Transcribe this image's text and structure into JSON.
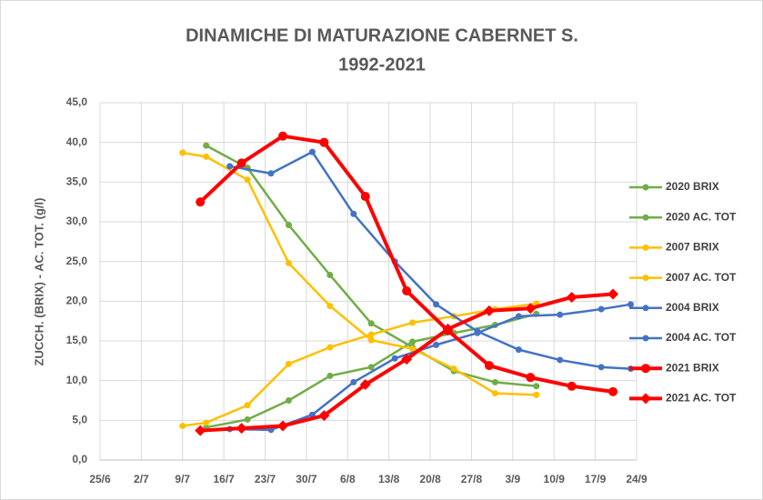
{
  "chart_data": {
    "type": "line",
    "title": "DINAMICHE DI MATURAZIONE CABERNET S.",
    "subtitle": "1992-2021",
    "y_label": "ZUCCH. (BRIX) - AC. TOT. (g/l)",
    "xlim": [
      176,
      267
    ],
    "xticks": [
      {
        "value": 176,
        "label": "25/6"
      },
      {
        "value": 183,
        "label": "2/7"
      },
      {
        "value": 190,
        "label": "9/7"
      },
      {
        "value": 197,
        "label": "16/7"
      },
      {
        "value": 204,
        "label": "23/7"
      },
      {
        "value": 211,
        "label": "30/7"
      },
      {
        "value": 218,
        "label": "6/8"
      },
      {
        "value": 225,
        "label": "13/8"
      },
      {
        "value": 232,
        "label": "20/8"
      },
      {
        "value": 239,
        "label": "27/8"
      },
      {
        "value": 246,
        "label": "3/9"
      },
      {
        "value": 253,
        "label": "10/9"
      },
      {
        "value": 260,
        "label": "17/9"
      },
      {
        "value": 267,
        "label": "24/9"
      }
    ],
    "ylim": [
      0,
      45
    ],
    "yticks": [
      {
        "value": 0,
        "label": "0,0"
      },
      {
        "value": 5,
        "label": "5,0"
      },
      {
        "value": 10,
        "label": "10,0"
      },
      {
        "value": 15,
        "label": "15,0"
      },
      {
        "value": 20,
        "label": "20,0"
      },
      {
        "value": 25,
        "label": "25,0"
      },
      {
        "value": 30,
        "label": "30,0"
      },
      {
        "value": 35,
        "label": "35,0"
      },
      {
        "value": 40,
        "label": "40,0"
      },
      {
        "value": 45,
        "label": "45,0"
      }
    ],
    "grid": true,
    "legend": "right",
    "series": [
      {
        "name": "2020 BRIX",
        "color": "#70ad47",
        "width": 2.5,
        "marker": "circle",
        "x": [
          194,
          201,
          208,
          215,
          222,
          229,
          236,
          243,
          250
        ],
        "values": [
          39.6,
          36.8,
          29.6,
          23.3,
          17.2,
          14.2,
          11.2,
          9.8,
          9.3
        ]
      },
      {
        "name": "2020 AC. TOT",
        "color": "#70ad47",
        "width": 2.5,
        "marker": "circle",
        "x": [
          194,
          201,
          208,
          215,
          222,
          229,
          236,
          243,
          250
        ],
        "values": [
          4.1,
          5.1,
          7.5,
          10.6,
          11.7,
          14.9,
          16.0,
          17.0,
          18.4
        ]
      },
      {
        "name": "2007 BRIX",
        "color": "#ffc000",
        "width": 2.5,
        "marker": "circle",
        "x": [
          190,
          194,
          201,
          208,
          215,
          222,
          229,
          236,
          243,
          250
        ],
        "values": [
          38.7,
          38.2,
          35.3,
          24.8,
          19.4,
          15.1,
          14.0,
          11.5,
          8.4,
          8.2
        ]
      },
      {
        "name": "2007 AC. TOT",
        "color": "#ffc000",
        "width": 2.5,
        "marker": "circle",
        "x": [
          190,
          194,
          201,
          208,
          215,
          222,
          229,
          236,
          243,
          250
        ],
        "values": [
          4.3,
          4.7,
          6.9,
          12.1,
          14.2,
          15.8,
          17.3,
          18.1,
          19.0,
          19.7
        ]
      },
      {
        "name": "2004 BRIX",
        "color": "#4472c4",
        "width": 2.5,
        "marker": "circle",
        "x": [
          198,
          205,
          212,
          219,
          226,
          233,
          240,
          247,
          254,
          261,
          266
        ],
        "values": [
          37.0,
          36.1,
          38.8,
          31.0,
          25.0,
          19.6,
          16.2,
          13.9,
          12.6,
          11.7,
          11.5
        ]
      },
      {
        "name": "2004 AC. TOT",
        "color": "#4472c4",
        "width": 2.5,
        "marker": "circle",
        "x": [
          198,
          205,
          212,
          219,
          226,
          233,
          240,
          247,
          254,
          261,
          266
        ],
        "values": [
          3.9,
          3.8,
          5.7,
          9.8,
          12.8,
          14.5,
          16.0,
          18.1,
          18.3,
          19.0,
          19.6
        ]
      },
      {
        "name": "2021 BRIX",
        "color": "#ff0000",
        "width": 4,
        "marker": "circle",
        "x": [
          193,
          200,
          207,
          214,
          221,
          228,
          235,
          242,
          249,
          256,
          263
        ],
        "values": [
          32.5,
          37.4,
          40.8,
          40.0,
          33.2,
          21.3,
          16.3,
          11.9,
          10.4,
          9.3,
          8.6
        ]
      },
      {
        "name": "2021 AC. TOT",
        "color": "#ff0000",
        "width": 4,
        "marker": "diamond",
        "x": [
          193,
          200,
          207,
          214,
          221,
          228,
          235,
          242,
          249,
          256,
          263
        ],
        "values": [
          3.7,
          4.0,
          4.3,
          5.6,
          9.5,
          12.7,
          16.5,
          18.8,
          19.1,
          20.5,
          20.9
        ]
      }
    ]
  }
}
